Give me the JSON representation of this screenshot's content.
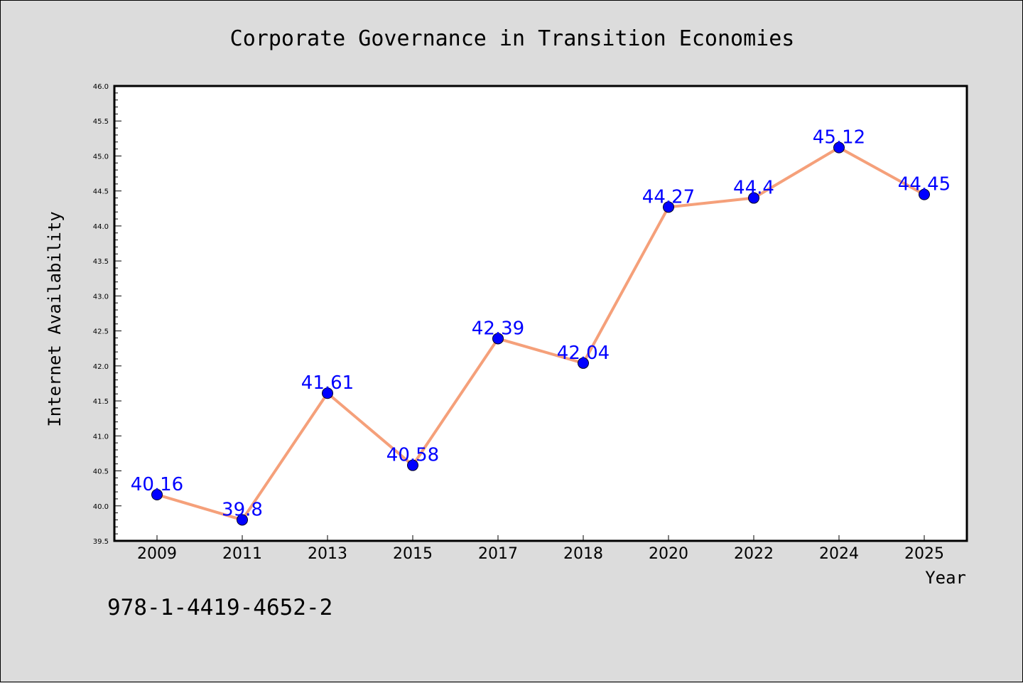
{
  "chart_data": {
    "type": "line",
    "title": "Corporate Governance in Transition Economies",
    "xlabel": "Year",
    "ylabel": "Internet Availability",
    "categories": [
      "2009",
      "2011",
      "2013",
      "2015",
      "2017",
      "2018",
      "2020",
      "2022",
      "2024",
      "2025"
    ],
    "values": [
      40.16,
      39.8,
      41.61,
      40.58,
      42.39,
      42.04,
      44.27,
      44.4,
      45.12,
      44.45
    ],
    "data_labels": [
      "40.16",
      "39.8",
      "41.61",
      "40.58",
      "42.39",
      "42.04",
      "44.27",
      "44.4",
      "45.12",
      "44.45"
    ],
    "ylim": [
      39.5,
      46.0
    ],
    "yticks": [
      "39.5",
      "40.0",
      "40.5",
      "41.0",
      "41.5",
      "42.0",
      "42.5",
      "43.0",
      "43.5",
      "44.0",
      "44.5",
      "45.0",
      "45.5",
      "46.0"
    ],
    "grid": false,
    "line_color": "#f5a07a",
    "marker_color": "#0000ff",
    "label_color": "#0000ff",
    "plot_background": "#ffffff",
    "figure_background": "#dcdcdc"
  },
  "footer": {
    "isbn": "978-1-4419-4652-2"
  }
}
